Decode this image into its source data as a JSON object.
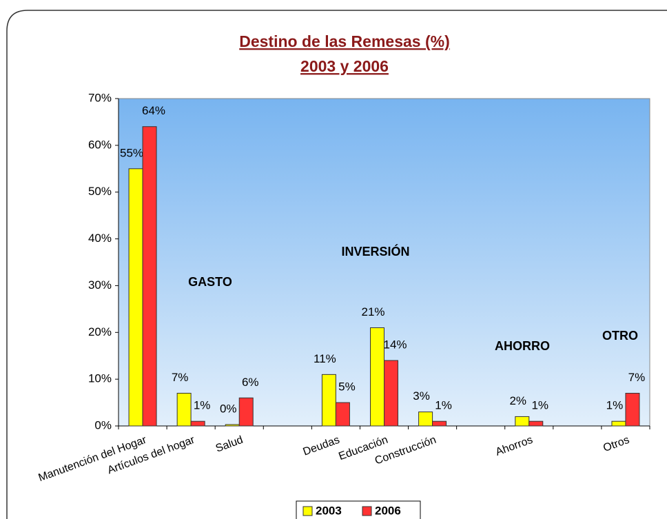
{
  "chart_data": {
    "type": "bar",
    "title": "Destino de las Remesas (%)",
    "subtitle": "2003 y 2006",
    "categories": [
      "Manutención del Hogar",
      "Artículos del hogar",
      "Salud",
      null,
      "Deudas",
      "Educación",
      "Construcción",
      null,
      "Ahorros",
      null,
      "Otros"
    ],
    "series": [
      {
        "name": "2003",
        "color": "#ffff00",
        "values": [
          55,
          7,
          0.3,
          null,
          11,
          21,
          3,
          null,
          2,
          null,
          1
        ],
        "value_labels": [
          "55%",
          "7%",
          "0%",
          null,
          "11%",
          "21%",
          "3%",
          null,
          "2%",
          null,
          "1%"
        ]
      },
      {
        "name": "2006",
        "color": "#ff3333",
        "values": [
          64,
          1,
          6,
          null,
          5,
          14,
          1,
          null,
          1,
          null,
          7
        ],
        "value_labels": [
          "64%",
          "1%",
          "6%",
          null,
          "5%",
          "14%",
          "1%",
          null,
          "1%",
          null,
          "7%"
        ]
      }
    ],
    "ylim": [
      0,
      70
    ],
    "yticks": [
      {
        "value": 0,
        "label": "0%"
      },
      {
        "value": 10,
        "label": "10%"
      },
      {
        "value": 20,
        "label": "20%"
      },
      {
        "value": 30,
        "label": "30%"
      },
      {
        "value": 40,
        "label": "40%"
      },
      {
        "value": 50,
        "label": "50%"
      },
      {
        "value": 60,
        "label": "60%"
      },
      {
        "value": 70,
        "label": "70%"
      }
    ],
    "annotations": [
      "GASTO",
      "INVERSIÓN",
      "AHORRO",
      "OTRO"
    ],
    "legend": "bottom"
  }
}
